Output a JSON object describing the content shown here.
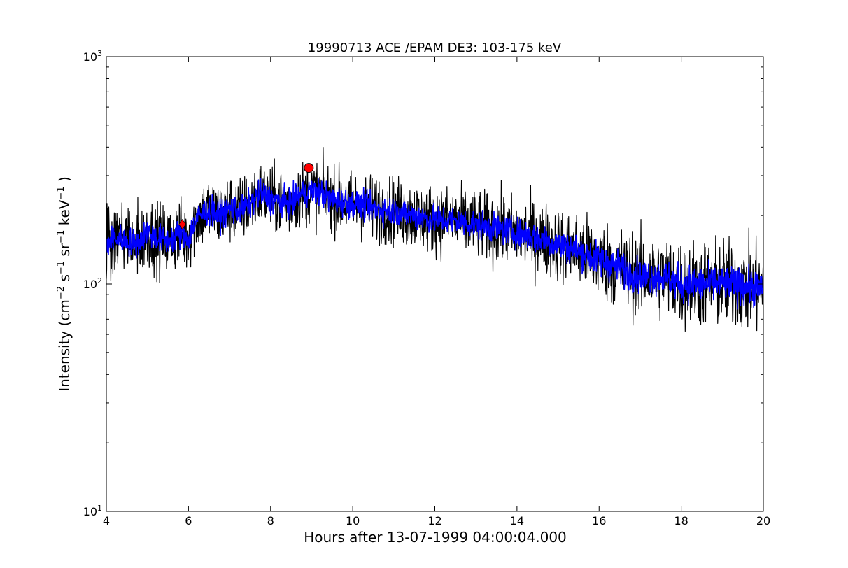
{
  "chart_data": {
    "type": "line",
    "title": "19990713 ACE /EPAM DE3: 103-175 keV",
    "xlabel": "Hours after 13-07-1999 04:00:04.000",
    "ylabel_parts": {
      "prefix": "Intensity (cm",
      "cm_exp": "−2",
      "s": " s",
      "s_exp": "−1",
      "sr": " sr",
      "sr_exp": "−1",
      "kev": " keV",
      "kev_exp": "−1",
      "suffix": " )"
    },
    "xlim": [
      4,
      20
    ],
    "ylim": [
      10,
      1000
    ],
    "yscale": "log",
    "grid": false,
    "x_ticks": [
      4,
      6,
      8,
      10,
      12,
      14,
      16,
      18,
      20
    ],
    "x_tick_labels": [
      "4",
      "6",
      "8",
      "10",
      "12",
      "14",
      "16",
      "18",
      "20"
    ],
    "y_major_ticks": [
      10,
      100,
      1000
    ],
    "y_tick_labels": [
      {
        "base": "10",
        "exp": "1"
      },
      {
        "base": "10",
        "exp": "2"
      },
      {
        "base": "10",
        "exp": "3"
      }
    ],
    "series": [
      {
        "color": "#000000",
        "x": [
          4.0,
          4.25,
          4.5,
          4.75,
          5.0,
          5.25,
          5.5,
          5.75,
          6.0,
          6.25,
          6.5,
          6.75,
          7.0,
          7.25,
          7.5,
          7.75,
          8.0,
          8.25,
          8.5,
          8.75,
          9.0,
          9.25,
          9.5,
          9.75,
          10.0,
          10.5,
          11.0,
          11.5,
          12.0,
          12.5,
          13.0,
          13.5,
          14.0,
          14.5,
          15.0,
          15.5,
          16.0,
          16.5,
          17.0,
          17.5,
          18.0,
          18.5,
          19.0,
          19.5,
          20.0
        ],
        "y": [
          150,
          160,
          155,
          150,
          170,
          158,
          155,
          165,
          160,
          200,
          210,
          200,
          215,
          210,
          225,
          250,
          235,
          230,
          225,
          250,
          255,
          250,
          235,
          230,
          225,
          215,
          210,
          200,
          192,
          190,
          182,
          175,
          168,
          160,
          150,
          140,
          128,
          118,
          108,
          108,
          100,
          100,
          100,
          98,
          95
        ],
        "scatter": [
          0.25,
          0.25,
          0.25,
          0.25,
          0.25,
          0.25,
          0.25,
          0.25,
          0.25,
          0.24,
          0.24,
          0.24,
          0.24,
          0.24,
          0.23,
          0.23,
          0.23,
          0.23,
          0.23,
          0.23,
          0.23,
          0.23,
          0.23,
          0.23,
          0.23,
          0.24,
          0.24,
          0.24,
          0.24,
          0.24,
          0.24,
          0.25,
          0.25,
          0.26,
          0.26,
          0.27,
          0.28,
          0.29,
          0.3,
          0.3,
          0.31,
          0.31,
          0.32,
          0.32,
          0.32
        ]
      },
      {
        "color": "#0000ff",
        "x": [
          4.0,
          4.25,
          4.5,
          4.75,
          5.0,
          5.25,
          5.5,
          5.75,
          6.0,
          6.25,
          6.5,
          6.75,
          7.0,
          7.25,
          7.5,
          7.75,
          8.0,
          8.25,
          8.5,
          8.75,
          9.0,
          9.25,
          9.5,
          9.75,
          10.0,
          10.5,
          11.0,
          11.5,
          12.0,
          12.5,
          13.0,
          13.5,
          14.0,
          14.5,
          15.0,
          15.5,
          16.0,
          16.5,
          17.0,
          17.5,
          18.0,
          18.5,
          19.0,
          19.5,
          20.0
        ],
        "y": [
          150,
          160,
          155,
          150,
          170,
          158,
          155,
          165,
          160,
          200,
          210,
          200,
          215,
          210,
          225,
          250,
          235,
          230,
          225,
          250,
          255,
          250,
          235,
          230,
          225,
          215,
          210,
          200,
          192,
          190,
          182,
          175,
          168,
          160,
          150,
          140,
          128,
          118,
          108,
          108,
          100,
          100,
          100,
          98,
          95
        ],
        "scatter": [
          0.1,
          0.1,
          0.1,
          0.1,
          0.1,
          0.1,
          0.1,
          0.1,
          0.1,
          0.1,
          0.1,
          0.1,
          0.1,
          0.1,
          0.1,
          0.1,
          0.1,
          0.1,
          0.1,
          0.1,
          0.1,
          0.1,
          0.1,
          0.1,
          0.1,
          0.1,
          0.1,
          0.1,
          0.1,
          0.1,
          0.1,
          0.1,
          0.1,
          0.11,
          0.11,
          0.11,
          0.12,
          0.12,
          0.12,
          0.12,
          0.13,
          0.13,
          0.13,
          0.13,
          0.13
        ]
      }
    ],
    "markers": [
      {
        "shape": "diamond",
        "color": "#ff0000",
        "x": 5.85,
        "y": 183
      },
      {
        "shape": "circle",
        "color": "#ff0000",
        "x": 8.93,
        "y": 324
      }
    ]
  }
}
